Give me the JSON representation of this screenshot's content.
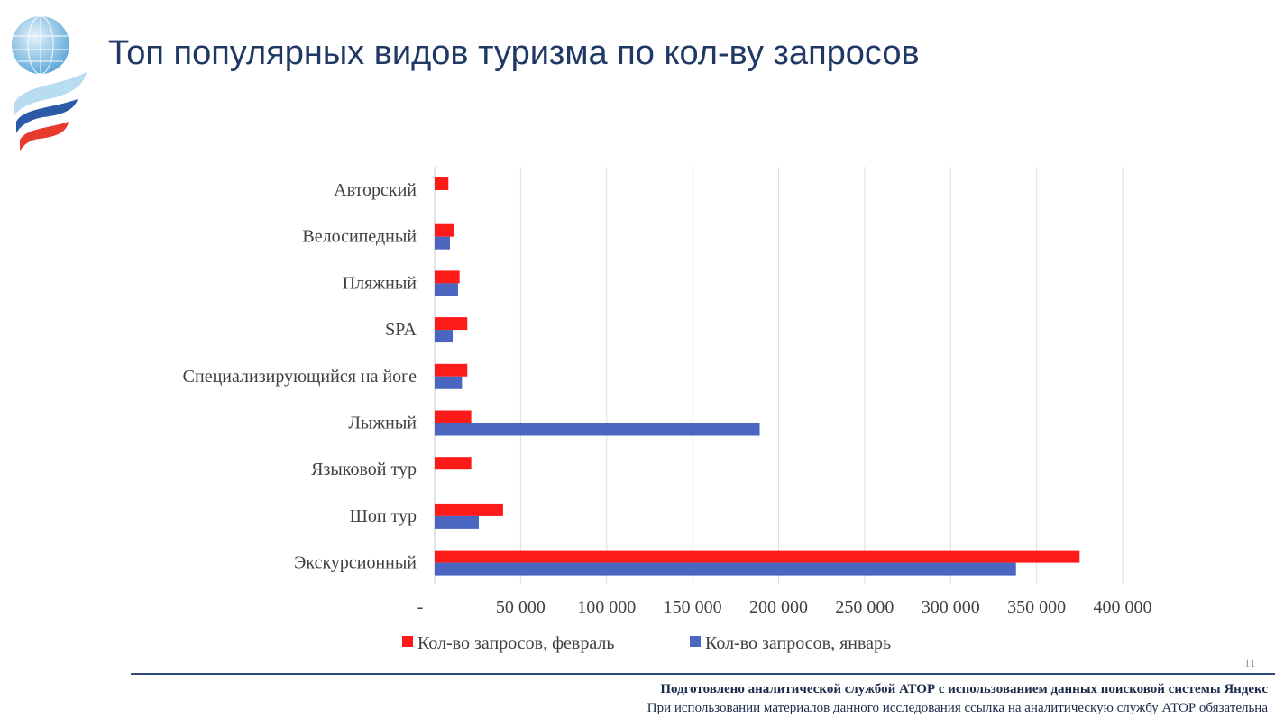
{
  "title": "Топ популярных видов туризма по кол-ву запросов",
  "chart_data": {
    "type": "bar",
    "orientation": "horizontal",
    "categories": [
      "Авторский",
      "Велосипедный",
      "Пляжный",
      "SPA",
      "Специализирующийся на йоге",
      "Лыжный",
      "Языковой тур",
      "Шоп тур",
      "Экскурсионный"
    ],
    "series": [
      {
        "name": "Кол-во запросов, февраль",
        "color": "#ff1a1a",
        "values": [
          8000,
          11200,
          14500,
          19000,
          19000,
          21300,
          21300,
          39800,
          375000
        ]
      },
      {
        "name": "Кол-во запросов, январь",
        "color": "#4a66c0",
        "values": [
          null,
          8900,
          13600,
          10500,
          15900,
          189000,
          null,
          25700,
          338000
        ]
      }
    ],
    "xlim": [
      0,
      400000
    ],
    "xticks": [
      0,
      50000,
      100000,
      150000,
      200000,
      250000,
      300000,
      350000,
      400000
    ],
    "xtick_labels": [
      "-",
      "50 000",
      "100 000",
      "150 000",
      "200 000",
      "250 000",
      "300 000",
      "350 000",
      "400 000"
    ],
    "grid": true,
    "legend_position": "bottom"
  },
  "footer": {
    "line1": "Подготовлено аналитической службой АТОР с использованием данных поисковой системы Яндекс",
    "line2": "При использовании материалов данного исследования ссылка на аналитическую службу АТОР обязательна",
    "page_number": "11"
  }
}
